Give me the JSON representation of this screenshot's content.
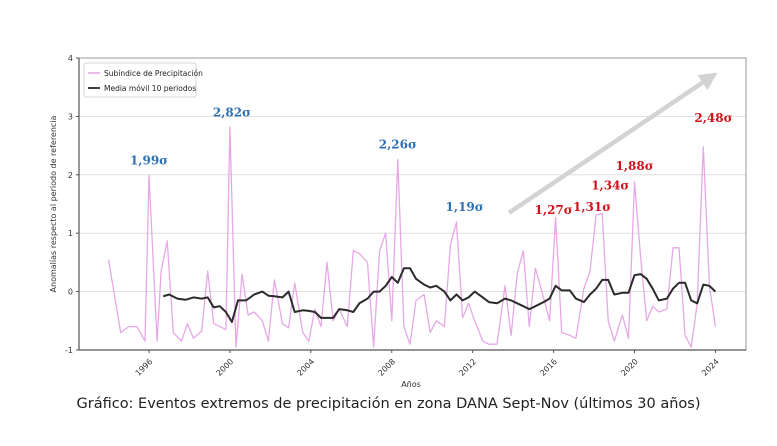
{
  "caption": "Gráfico: Eventos extremos de precipitación en zona DANA Sept-Nov (últimos 30 años)",
  "chart_data": {
    "type": "line",
    "title": "",
    "xlabel": "Años",
    "ylabel": "Anomalías respecto al periodo de referencia",
    "xlim": [
      1993.0,
      2025.3
    ],
    "ylim": [
      -1,
      4
    ],
    "xticks": [
      1996,
      2000,
      2004,
      2008,
      2012,
      2016,
      2020,
      2024
    ],
    "yticks": [
      -1,
      0,
      1,
      2,
      3,
      4
    ],
    "grid": "horizontal",
    "legend": {
      "placement": "top-left",
      "entries": [
        "Subíndice de Precipitación",
        "Media móvil 10 periodos"
      ]
    },
    "colors": {
      "precip": "#e6a8e6",
      "moving_avg": "#2b2b2b",
      "blue_ann": "#2f6fb5",
      "red_ann": "#d0121b",
      "arrow": "#d3d3d3"
    },
    "series": [
      {
        "name": "Subíndice de Precipitación",
        "x": [
          1994.0,
          1994.6,
          1995.0,
          1995.4,
          1995.8,
          1996.0,
          1996.4,
          1996.6,
          1996.9,
          1997.2,
          1997.6,
          1997.9,
          1998.2,
          1998.6,
          1998.9,
          1999.2,
          1999.5,
          1999.8,
          2000.0,
          2000.3,
          2000.6,
          2000.9,
          2001.2,
          2001.6,
          2001.9,
          2002.2,
          2002.6,
          2002.9,
          2003.2,
          2003.6,
          2003.9,
          2004.2,
          2004.5,
          2004.8,
          2005.1,
          2005.4,
          2005.8,
          2006.1,
          2006.4,
          2006.8,
          2007.1,
          2007.4,
          2007.7,
          2008.0,
          2008.3,
          2008.6,
          2008.9,
          2009.2,
          2009.6,
          2009.9,
          2010.2,
          2010.6,
          2010.9,
          2011.2,
          2011.5,
          2011.8,
          2012.1,
          2012.5,
          2012.8,
          2013.2,
          2013.6,
          2013.9,
          2014.2,
          2014.5,
          2014.8,
          2015.1,
          2015.5,
          2015.8,
          2016.1,
          2016.4,
          2016.8,
          2017.1,
          2017.5,
          2017.8,
          2018.1,
          2018.4,
          2018.7,
          2019.0,
          2019.4,
          2019.7,
          2020.0,
          2020.3,
          2020.6,
          2020.9,
          2021.2,
          2021.6,
          2021.9,
          2022.2,
          2022.5,
          2022.8,
          2023.1,
          2023.4,
          2023.7,
          2024.0
        ],
        "values": [
          0.55,
          -0.7,
          -0.6,
          -0.6,
          -0.85,
          1.99,
          -0.85,
          0.35,
          0.87,
          -0.7,
          -0.85,
          -0.55,
          -0.8,
          -0.68,
          0.35,
          -0.55,
          -0.6,
          -0.65,
          2.82,
          -0.95,
          0.3,
          -0.4,
          -0.35,
          -0.5,
          -0.85,
          0.2,
          -0.55,
          -0.62,
          0.15,
          -0.7,
          -0.85,
          -0.3,
          -0.6,
          0.5,
          -0.5,
          -0.3,
          -0.6,
          0.7,
          0.65,
          0.5,
          -0.95,
          0.7,
          1.0,
          -0.5,
          2.26,
          -0.6,
          -0.9,
          -0.15,
          -0.05,
          -0.7,
          -0.5,
          -0.6,
          0.8,
          1.19,
          -0.45,
          -0.2,
          -0.5,
          -0.85,
          -0.9,
          -0.9,
          0.1,
          -0.75,
          0.3,
          0.7,
          -0.6,
          0.4,
          -0.1,
          -0.5,
          1.27,
          -0.7,
          -0.75,
          -0.8,
          0.05,
          0.35,
          1.31,
          1.34,
          -0.5,
          -0.85,
          -0.4,
          -0.8,
          1.88,
          0.6,
          -0.5,
          -0.25,
          -0.35,
          -0.3,
          0.75,
          0.75,
          -0.75,
          -0.95,
          -0.2,
          2.48,
          0.1,
          -0.6
        ]
      },
      {
        "name": "Media móvil 10 periodos",
        "x": [
          1996.7,
          1997.0,
          1997.4,
          1997.8,
          1998.2,
          1998.6,
          1998.9,
          1999.2,
          1999.5,
          1999.8,
          2000.1,
          2000.4,
          2000.8,
          2001.2,
          2001.6,
          2001.9,
          2002.2,
          2002.6,
          2002.9,
          2003.2,
          2003.6,
          2003.9,
          2004.2,
          2004.5,
          2004.8,
          2005.1,
          2005.4,
          2005.8,
          2006.1,
          2006.4,
          2006.8,
          2007.1,
          2007.4,
          2007.7,
          2008.0,
          2008.3,
          2008.6,
          2008.9,
          2009.2,
          2009.6,
          2009.9,
          2010.2,
          2010.6,
          2010.9,
          2011.2,
          2011.5,
          2011.8,
          2012.1,
          2012.5,
          2012.8,
          2013.2,
          2013.6,
          2013.9,
          2014.2,
          2014.5,
          2014.8,
          2015.1,
          2015.5,
          2015.8,
          2016.1,
          2016.4,
          2016.8,
          2017.1,
          2017.5,
          2017.8,
          2018.1,
          2018.4,
          2018.7,
          2019.0,
          2019.4,
          2019.7,
          2020.0,
          2020.3,
          2020.6,
          2020.9,
          2021.2,
          2021.6,
          2021.9,
          2022.2,
          2022.5,
          2022.8,
          2023.1,
          2023.4,
          2023.7,
          2024.0
        ],
        "values": [
          -0.08,
          -0.05,
          -0.12,
          -0.14,
          -0.1,
          -0.12,
          -0.1,
          -0.27,
          -0.25,
          -0.35,
          -0.52,
          -0.15,
          -0.15,
          -0.05,
          0.0,
          -0.07,
          -0.08,
          -0.1,
          0.0,
          -0.35,
          -0.32,
          -0.33,
          -0.35,
          -0.45,
          -0.45,
          -0.45,
          -0.3,
          -0.32,
          -0.35,
          -0.2,
          -0.12,
          0.0,
          0.0,
          0.1,
          0.25,
          0.15,
          0.4,
          0.4,
          0.22,
          0.12,
          0.07,
          0.1,
          0.0,
          -0.15,
          -0.05,
          -0.15,
          -0.1,
          0.0,
          -0.1,
          -0.18,
          -0.2,
          -0.12,
          -0.15,
          -0.2,
          -0.25,
          -0.3,
          -0.25,
          -0.18,
          -0.12,
          0.1,
          0.02,
          0.02,
          -0.12,
          -0.18,
          -0.05,
          0.05,
          0.2,
          0.2,
          -0.05,
          -0.02,
          -0.02,
          0.28,
          0.3,
          0.22,
          0.05,
          -0.15,
          -0.12,
          0.05,
          0.15,
          0.15,
          -0.15,
          -0.2,
          0.12,
          0.1,
          0.0
        ]
      }
    ],
    "annotations": [
      {
        "text": "1,99σ",
        "x": 1996.0,
        "y": 2.18,
        "color": "blue"
      },
      {
        "text": "2,82σ",
        "x": 2000.1,
        "y": 3.0,
        "color": "blue"
      },
      {
        "text": "2,26σ",
        "x": 2008.3,
        "y": 2.45,
        "color": "blue"
      },
      {
        "text": "1,19σ",
        "x": 2011.6,
        "y": 1.38,
        "color": "blue"
      },
      {
        "text": "1,27σ",
        "x": 2016.0,
        "y": 1.33,
        "color": "red"
      },
      {
        "text": "1,31σ",
        "x": 2017.9,
        "y": 1.38,
        "color": "red"
      },
      {
        "text": "1,34σ",
        "x": 2018.8,
        "y": 1.75,
        "color": "red"
      },
      {
        "text": "1,88σ",
        "x": 2020.0,
        "y": 2.08,
        "color": "red"
      },
      {
        "text": "2,48σ",
        "x": 2023.9,
        "y": 2.9,
        "color": "red"
      }
    ],
    "trend_arrow": {
      "from": [
        2013.8,
        1.35
      ],
      "to": [
        2024.1,
        3.75
      ],
      "label": ""
    }
  }
}
